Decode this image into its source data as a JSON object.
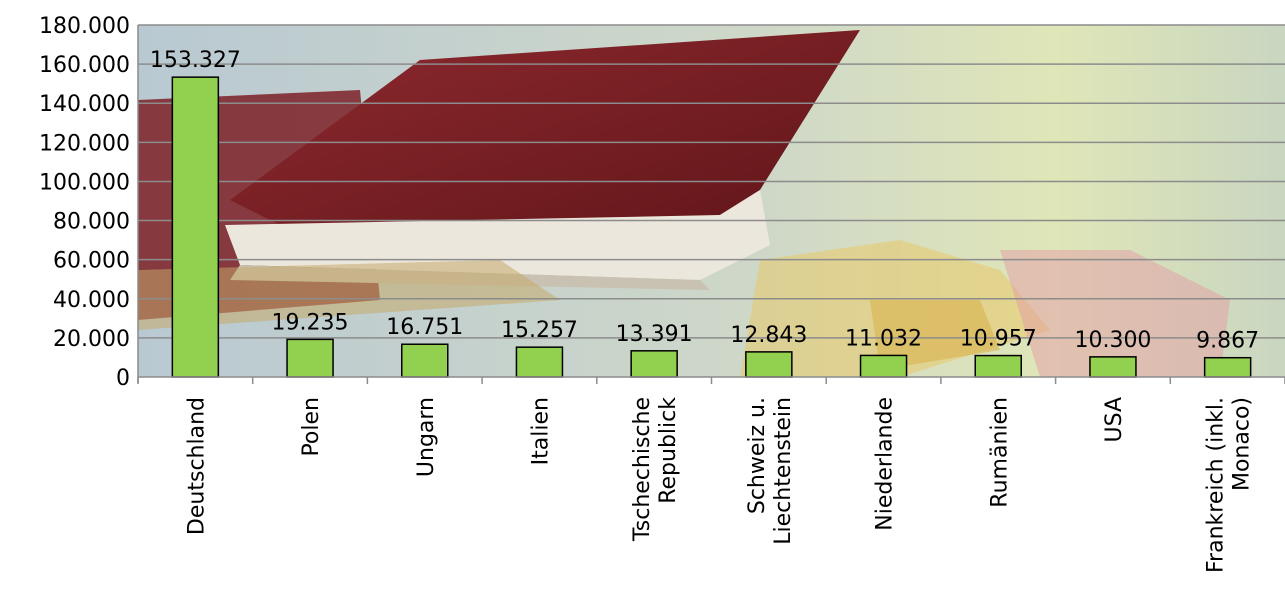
{
  "chart_data": {
    "type": "bar",
    "title": "",
    "xlabel": "",
    "ylabel": "",
    "categories": [
      [
        "Deutschland"
      ],
      [
        "Polen"
      ],
      [
        "Ungarn"
      ],
      [
        "Italien"
      ],
      [
        "Tschechische",
        "Republick"
      ],
      [
        "Schweiz u.",
        "Liechtenstein"
      ],
      [
        "Niederlande"
      ],
      [
        "Rumänien"
      ],
      [
        "USA"
      ],
      [
        "Frankreich (inkl.",
        "Monaco)"
      ]
    ],
    "values": [
      153327,
      19235,
      16751,
      15257,
      13391,
      12843,
      11032,
      10957,
      10300,
      9867
    ],
    "value_labels": [
      "153.327",
      "19.235",
      "16.751",
      "15.257",
      "13.391",
      "12.843",
      "11.032",
      "10.957",
      "10.300",
      "9.867"
    ],
    "ylim": [
      0,
      180000
    ],
    "yticks": [
      0,
      20000,
      40000,
      60000,
      80000,
      100000,
      120000,
      140000,
      160000,
      180000
    ],
    "ytick_labels": [
      "0",
      "20.000",
      "40.000",
      "60.000",
      "80.000",
      "100.000",
      "120.000",
      "140.000",
      "160.000",
      "180.000"
    ],
    "grid": true,
    "bar_color": "#92d050",
    "background": "photo of passports on a map"
  }
}
